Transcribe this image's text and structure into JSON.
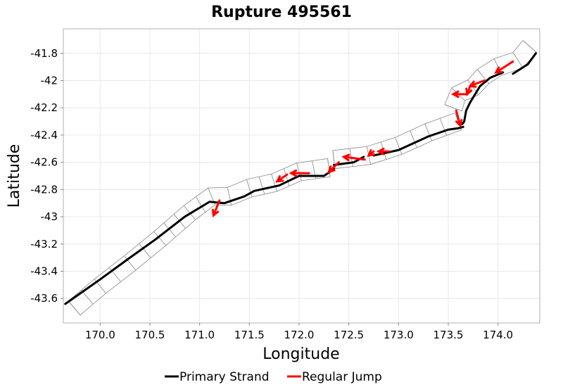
{
  "chart_data": {
    "type": "line",
    "title": "Rupture 495561",
    "xlabel": "Longitude",
    "ylabel": "Latitude",
    "xlim": [
      169.63,
      174.42
    ],
    "ylim": [
      -43.78,
      -41.62
    ],
    "x_ticks": [
      "170.0",
      "170.5",
      "171.0",
      "171.5",
      "172.0",
      "172.5",
      "173.0",
      "173.5",
      "174.0"
    ],
    "x_tick_values": [
      170.0,
      170.5,
      171.0,
      171.5,
      172.0,
      172.5,
      173.0,
      173.5,
      174.0
    ],
    "y_ticks": [
      "-41.8",
      "-42",
      "-42.2",
      "-42.4",
      "-42.6",
      "-42.8",
      "-43",
      "-43.2",
      "-43.4",
      "-43.6"
    ],
    "y_tick_values": [
      -41.8,
      -42.0,
      -42.2,
      -42.4,
      -42.6,
      -42.8,
      -43.0,
      -43.2,
      -43.4,
      -43.6
    ],
    "grid": true,
    "legend_position": "bottom",
    "colors": {
      "strand": "#000000",
      "jump": "#ff0000",
      "section_outline": "#888888"
    },
    "series": [
      {
        "name": "Primary Strand",
        "color": "#000000",
        "segments": [
          [
            [
              169.65,
              -43.64
            ],
            [
              170.0,
              -43.46
            ],
            [
              170.3,
              -43.3
            ],
            [
              170.55,
              -43.17
            ],
            [
              170.85,
              -43.0
            ],
            [
              171.1,
              -42.89
            ],
            [
              171.25,
              -42.9
            ],
            [
              171.45,
              -42.85
            ],
            [
              171.55,
              -42.81
            ],
            [
              171.8,
              -42.77
            ],
            [
              172.0,
              -42.7
            ],
            [
              172.25,
              -42.7
            ],
            [
              172.35,
              -42.65
            ]
          ],
          [
            [
              172.35,
              -42.62
            ],
            [
              172.55,
              -42.6
            ],
            [
              172.65,
              -42.56
            ]
          ],
          [
            [
              172.75,
              -42.55
            ],
            [
              173.0,
              -42.51
            ],
            [
              173.3,
              -42.41
            ],
            [
              173.5,
              -42.36
            ],
            [
              173.6,
              -42.35
            ],
            [
              173.65,
              -42.34
            ]
          ],
          [
            [
              173.64,
              -42.32
            ],
            [
              173.66,
              -42.3
            ],
            [
              173.68,
              -42.22
            ],
            [
              173.72,
              -42.16
            ],
            [
              173.82,
              -42.04
            ],
            [
              173.92,
              -41.98
            ],
            [
              174.05,
              -41.94
            ]
          ],
          [
            [
              174.15,
              -41.95
            ],
            [
              174.3,
              -41.88
            ],
            [
              174.38,
              -41.8
            ]
          ]
        ]
      },
      {
        "name": "Regular Jump",
        "color": "#ff0000",
        "jumps": [
          {
            "from": [
              174.15,
              -41.86
            ],
            "to": [
              173.98,
              -41.94
            ]
          },
          {
            "from": [
              173.86,
              -42.0
            ],
            "to": [
              173.72,
              -42.04
            ]
          },
          {
            "from": [
              173.72,
              -42.04
            ],
            "to": [
              173.69,
              -42.1
            ]
          },
          {
            "from": [
              173.69,
              -42.1
            ],
            "to": [
              173.55,
              -42.1
            ]
          },
          {
            "from": [
              173.58,
              -42.22
            ],
            "to": [
              173.62,
              -42.33
            ]
          },
          {
            "from": [
              172.9,
              -42.52
            ],
            "to": [
              172.8,
              -42.52
            ]
          },
          {
            "from": [
              172.75,
              -42.52
            ],
            "to": [
              172.7,
              -42.55
            ]
          },
          {
            "from": [
              172.66,
              -42.58
            ],
            "to": [
              172.45,
              -42.56
            ]
          },
          {
            "from": [
              172.4,
              -42.6
            ],
            "to": [
              172.3,
              -42.67
            ]
          },
          {
            "from": [
              172.1,
              -42.68
            ],
            "to": [
              171.92,
              -42.68
            ]
          },
          {
            "from": [
              171.88,
              -42.69
            ],
            "to": [
              171.78,
              -42.74
            ]
          },
          {
            "from": [
              171.2,
              -42.88
            ],
            "to": [
              171.14,
              -42.99
            ]
          }
        ]
      }
    ],
    "fault_sections": [
      [
        [
          169.74,
          -43.67
        ],
        [
          170.0,
          -43.51
        ],
        [
          170.3,
          -43.34
        ],
        [
          170.6,
          -43.16
        ],
        [
          170.9,
          -42.97
        ],
        [
          171.12,
          -42.85
        ],
        [
          171.3,
          -42.85
        ],
        [
          171.5,
          -42.79
        ],
        [
          171.75,
          -42.75
        ],
        [
          172.0,
          -42.67
        ],
        [
          172.3,
          -42.64
        ]
      ],
      [
        [
          172.35,
          -42.58
        ],
        [
          172.7,
          -42.55
        ],
        [
          173.0,
          -42.48
        ],
        [
          173.3,
          -42.38
        ],
        [
          173.6,
          -42.3
        ]
      ],
      [
        [
          173.55,
          -42.2
        ],
        [
          173.6,
          -42.1
        ],
        [
          173.75,
          -42.05
        ],
        [
          173.85,
          -41.97
        ],
        [
          174.0,
          -41.9
        ],
        [
          174.2,
          -41.85
        ],
        [
          174.32,
          -41.75
        ]
      ]
    ],
    "legend": [
      "Primary Strand",
      "Regular Jump"
    ]
  }
}
